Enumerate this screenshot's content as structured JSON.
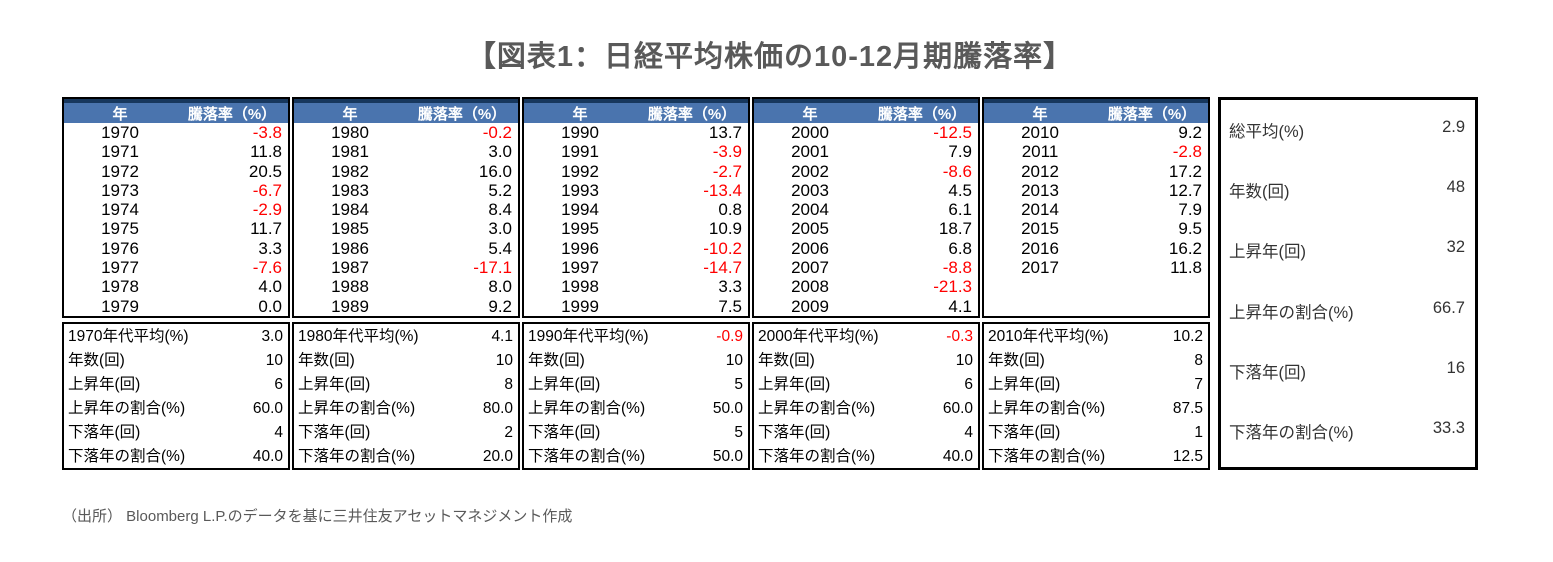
{
  "title": "【図表1：日経平均株価の10-12月期騰落率】",
  "columns": {
    "year": "年",
    "rate": "騰落率（%）"
  },
  "colors": {
    "header_background": "#4a74ae",
    "header_top_border": "#17375d",
    "table_border": "#000000",
    "negative_value": "#ff0000",
    "title_text": "#595959",
    "source_text": "#595959"
  },
  "decades": [
    {
      "rows": [
        {
          "year": "1970",
          "value": "-3.8",
          "neg": true
        },
        {
          "year": "1971",
          "value": "11.8"
        },
        {
          "year": "1972",
          "value": "20.5"
        },
        {
          "year": "1973",
          "value": "-6.7",
          "neg": true
        },
        {
          "year": "1974",
          "value": "-2.9",
          "neg": true
        },
        {
          "year": "1975",
          "value": "11.7"
        },
        {
          "year": "1976",
          "value": "3.3"
        },
        {
          "year": "1977",
          "value": "-7.6",
          "neg": true
        },
        {
          "year": "1978",
          "value": "4.0"
        },
        {
          "year": "1979",
          "value": "0.0"
        }
      ],
      "summary": [
        {
          "label": "1970年代平均(%)",
          "value": "3.0"
        },
        {
          "label": "年数(回)",
          "value": "10"
        },
        {
          "label": "上昇年(回)",
          "value": "6"
        },
        {
          "label": "上昇年の割合(%)",
          "value": "60.0"
        },
        {
          "label": "下落年(回)",
          "value": "4"
        },
        {
          "label": "下落年の割合(%)",
          "value": "40.0"
        }
      ]
    },
    {
      "rows": [
        {
          "year": "1980",
          "value": "-0.2",
          "neg": true
        },
        {
          "year": "1981",
          "value": "3.0"
        },
        {
          "year": "1982",
          "value": "16.0"
        },
        {
          "year": "1983",
          "value": "5.2"
        },
        {
          "year": "1984",
          "value": "8.4"
        },
        {
          "year": "1985",
          "value": "3.0"
        },
        {
          "year": "1986",
          "value": "5.4"
        },
        {
          "year": "1987",
          "value": "-17.1",
          "neg": true
        },
        {
          "year": "1988",
          "value": "8.0"
        },
        {
          "year": "1989",
          "value": "9.2"
        }
      ],
      "summary": [
        {
          "label": "1980年代平均(%)",
          "value": "4.1"
        },
        {
          "label": "年数(回)",
          "value": "10"
        },
        {
          "label": "上昇年(回)",
          "value": "8"
        },
        {
          "label": "上昇年の割合(%)",
          "value": "80.0"
        },
        {
          "label": "下落年(回)",
          "value": "2"
        },
        {
          "label": "下落年の割合(%)",
          "value": "20.0"
        }
      ]
    },
    {
      "rows": [
        {
          "year": "1990",
          "value": "13.7"
        },
        {
          "year": "1991",
          "value": "-3.9",
          "neg": true
        },
        {
          "year": "1992",
          "value": "-2.7",
          "neg": true
        },
        {
          "year": "1993",
          "value": "-13.4",
          "neg": true
        },
        {
          "year": "1994",
          "value": "0.8"
        },
        {
          "year": "1995",
          "value": "10.9"
        },
        {
          "year": "1996",
          "value": "-10.2",
          "neg": true
        },
        {
          "year": "1997",
          "value": "-14.7",
          "neg": true
        },
        {
          "year": "1998",
          "value": "3.3"
        },
        {
          "year": "1999",
          "value": "7.5"
        }
      ],
      "summary": [
        {
          "label": "1990年代平均(%)",
          "value": "-0.9",
          "neg": true
        },
        {
          "label": "年数(回)",
          "value": "10"
        },
        {
          "label": "上昇年(回)",
          "value": "5"
        },
        {
          "label": "上昇年の割合(%)",
          "value": "50.0"
        },
        {
          "label": "下落年(回)",
          "value": "5"
        },
        {
          "label": "下落年の割合(%)",
          "value": "50.0"
        }
      ]
    },
    {
      "rows": [
        {
          "year": "2000",
          "value": "-12.5",
          "neg": true
        },
        {
          "year": "2001",
          "value": "7.9"
        },
        {
          "year": "2002",
          "value": "-8.6",
          "neg": true
        },
        {
          "year": "2003",
          "value": "4.5"
        },
        {
          "year": "2004",
          "value": "6.1"
        },
        {
          "year": "2005",
          "value": "18.7"
        },
        {
          "year": "2006",
          "value": "6.8"
        },
        {
          "year": "2007",
          "value": "-8.8",
          "neg": true
        },
        {
          "year": "2008",
          "value": "-21.3",
          "neg": true
        },
        {
          "year": "2009",
          "value": "4.1"
        }
      ],
      "summary": [
        {
          "label": "2000年代平均(%)",
          "value": "-0.3",
          "neg": true
        },
        {
          "label": "年数(回)",
          "value": "10"
        },
        {
          "label": "上昇年(回)",
          "value": "6"
        },
        {
          "label": "上昇年の割合(%)",
          "value": "60.0"
        },
        {
          "label": "下落年(回)",
          "value": "4"
        },
        {
          "label": "下落年の割合(%)",
          "value": "40.0"
        }
      ]
    },
    {
      "rows": [
        {
          "year": "2010",
          "value": "9.2"
        },
        {
          "year": "2011",
          "value": "-2.8",
          "neg": true
        },
        {
          "year": "2012",
          "value": "17.2"
        },
        {
          "year": "2013",
          "value": "12.7"
        },
        {
          "year": "2014",
          "value": "7.9"
        },
        {
          "year": "2015",
          "value": "9.5"
        },
        {
          "year": "2016",
          "value": "16.2"
        },
        {
          "year": "2017",
          "value": "11.8"
        }
      ],
      "summary": [
        {
          "label": "2010年代平均(%)",
          "value": "10.2"
        },
        {
          "label": "年数(回)",
          "value": "8"
        },
        {
          "label": "上昇年(回)",
          "value": "7"
        },
        {
          "label": "上昇年の割合(%)",
          "value": "87.5"
        },
        {
          "label": "下落年(回)",
          "value": "1"
        },
        {
          "label": "下落年の割合(%)",
          "value": "12.5"
        }
      ]
    }
  ],
  "total_summary": [
    {
      "label": "総平均(%)",
      "value": "2.9"
    },
    {
      "label": "年数(回)",
      "value": "48"
    },
    {
      "label": "上昇年(回)",
      "value": "32"
    },
    {
      "label": "上昇年の割合(%)",
      "value": "66.7"
    },
    {
      "label": "下落年(回)",
      "value": "16"
    },
    {
      "label": "下落年の割合(%)",
      "value": "33.3"
    }
  ],
  "source": "（出所） Bloomberg L.P.のデータを基に三井住友アセットマネジメント作成"
}
